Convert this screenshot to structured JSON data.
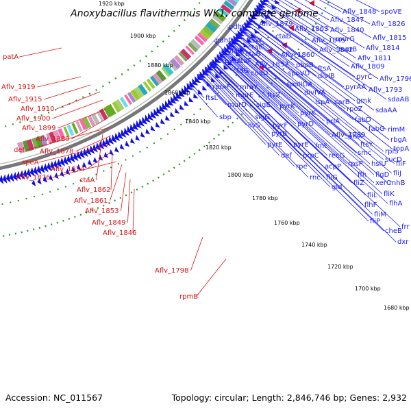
{
  "title": "Anoxybacillus flavithermus WK1, complete genome",
  "footer": {
    "accession": "Accession: NC_011567",
    "topology": "Topology: circular; Length: 2,846,746 bp; Genes: 2,932"
  },
  "colors": {
    "forward_genes": "#1111dd",
    "reverse_genes": "#ee1111",
    "backbone": "#777777",
    "gc_dots": "#229922",
    "blue_labels": "#1a1aff",
    "red_labels": "#dd1111"
  },
  "kbp_ticks": [
    "1920 kbp",
    "1900 kbp",
    "1880 kbp",
    "1860 kbp",
    "1840 kbp",
    "1820 kbp",
    "1800 kbp",
    "1780 kbp",
    "1760 kbp",
    "1740 kbp",
    "1720 kbp",
    "1700 kbp",
    "1680 kbp"
  ],
  "blue_labels": [
    "Aflv_1848",
    "spoVE",
    "pdhC",
    "Aflv_1879",
    "Aflv_1847",
    "Aflv_1863",
    "ctaD",
    "Aflv_1826",
    "Aflv_1840",
    "ftsW",
    "pdhD",
    "ctaE",
    "Aflv_1845",
    "murG",
    "Aflv_1815",
    "ylaK",
    "ctaB",
    "Aflv_1860",
    "Aflv_1842",
    "murB",
    "Aflv_1814",
    "pycA",
    "ctaF",
    "Aflv_1852",
    "pbpB",
    "Aflv_1811",
    "divIB",
    "ctaG",
    "coaD",
    "ftsA",
    "spoVD",
    "Aflv_1809",
    "pyrC",
    "rpmF",
    "mraY",
    "spoIIGA",
    "pyrAA",
    "Aflv_1796",
    "ftsL",
    "murE",
    "ftsZ",
    "divIVA",
    "Aflv_1793",
    "lspA",
    "carB",
    "gmk",
    "sdaAB",
    "murD",
    "sigE",
    "pyrK",
    "pyrK",
    "rpoZ",
    "sdaAA",
    "sbp",
    "sigG",
    "pyrD",
    "priA",
    "fabD",
    "ilvS",
    "pyrF",
    "Aflv_1789",
    "fabG",
    "rimM",
    "pyrB",
    "pyrE",
    "plsX",
    "ftsY",
    "rbgA",
    "pyrE",
    "fmt",
    "rplS",
    "topA",
    "def",
    "prpC",
    "recG",
    "smc",
    "sucD",
    "fliF",
    "rpe",
    "acpP",
    "rpsP",
    "hslU",
    "fliJ",
    "rnc",
    "fliG",
    "ffh",
    "flgD",
    "rnhB",
    "gid",
    "fliZ",
    "xerC",
    "fliK",
    "fliL",
    "flhA",
    "flhF",
    "fliM",
    "fliP",
    "cheB",
    "frr",
    "dxr"
  ],
  "red_labels": [
    "patA",
    "Aflv_1919",
    "Aflv_1915",
    "Aflv_1910",
    "Aflv_1900",
    "Aflv_1899",
    "Aflv_1889",
    "def",
    "Aflv_1878",
    "speA",
    "Aflv_1874",
    "Aflv_1876",
    "ctaA",
    "Aflv_1862",
    "Aflv_1861",
    "Aflv_1853",
    "Aflv_1849",
    "Aflv_1846",
    "Aflv_1798",
    "rpmB"
  ]
}
